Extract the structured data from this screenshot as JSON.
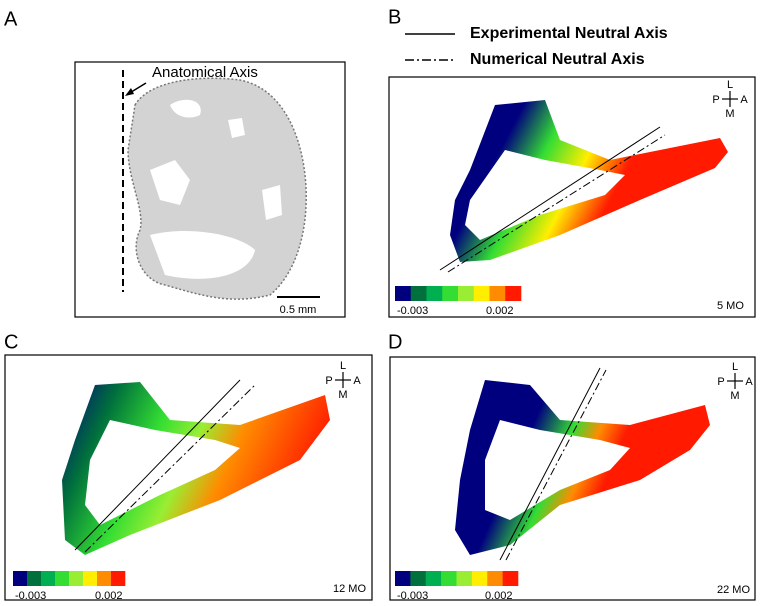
{
  "legend": [
    {
      "label": "Experimental Neutral Axis"
    },
    {
      "label": "Numerical Neutral Axis"
    }
  ],
  "colorbar_colors": [
    "#00007f",
    "#00703c",
    "#00b050",
    "#33dd33",
    "#99ee33",
    "#ffee00",
    "#ff8c00",
    "#ff1a00"
  ],
  "panels": [
    {
      "letter": "A",
      "annotation": "Anatomical Axis",
      "scale_bar": "0.5 mm"
    },
    {
      "letter": "B",
      "age": "5 MO",
      "colorbar": {
        "min": "-0.003",
        "max": "0.002"
      },
      "orientation": {
        "top": "L",
        "left": "P",
        "right": "A",
        "bottom": "M"
      }
    },
    {
      "letter": "C",
      "age": "12 MO",
      "colorbar": {
        "min": "-0.003",
        "max": "0.002"
      },
      "orientation": {
        "top": "L",
        "left": "P",
        "right": "A",
        "bottom": "M"
      }
    },
    {
      "letter": "D",
      "age": "22 MO",
      "colorbar": {
        "min": "-0.003",
        "max": "0.002"
      },
      "orientation": {
        "top": "L",
        "left": "P",
        "right": "A",
        "bottom": "M"
      }
    }
  ]
}
